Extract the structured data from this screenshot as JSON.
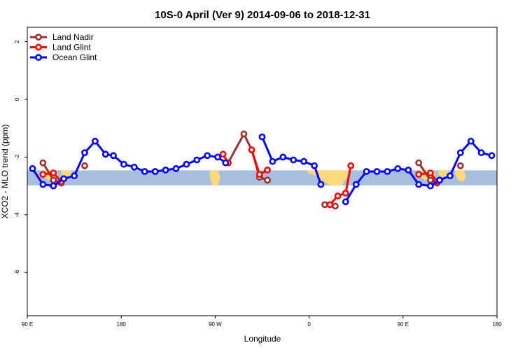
{
  "chart_data": {
    "type": "line",
    "title": "10S-0 April (Ver 9)   2014-09-06 to 2018-12-31",
    "xlabel": "Longitude",
    "ylabel": "XCO2 - MLO trend (ppm)",
    "xlim": [
      90,
      450
    ],
    "ylim": [
      -7.5,
      2.5
    ],
    "x_ticks": [
      {
        "value": 90,
        "label": "90 E"
      },
      {
        "value": 162,
        "label": "180"
      },
      {
        "value": 234,
        "label": "90 W"
      },
      {
        "value": 306,
        "label": "0"
      },
      {
        "value": 378,
        "label": "90 E"
      },
      {
        "value": 450,
        "label": "180"
      }
    ],
    "y_ticks": [
      {
        "value": 2,
        "label": "2"
      },
      {
        "value": 0,
        "label": "0"
      },
      {
        "value": -2,
        "label": "-2"
      },
      {
        "value": -4,
        "label": "-4"
      },
      {
        "value": -6,
        "label": "-6"
      }
    ],
    "legend_position": "top-left",
    "band": {
      "ymin": -2.98,
      "ymax": -2.46,
      "color": "#a8bedc",
      "land_color": "#fcd97a"
    },
    "series": [
      {
        "name": "Land Nadir",
        "color": "#993333",
        "segments": [
          [
            [
              102,
              -2.2
            ],
            [
              110,
              -2.8
            ],
            [
              116,
              -2.9
            ]
          ],
          [
            [
              134,
              -2.3
            ]
          ],
          [
            [
              244,
              -2.2
            ],
            [
              256,
              -1.2
            ],
            [
              262,
              -1.75
            ],
            [
              268,
              -2.7
            ],
            [
              274,
              -2.8
            ]
          ],
          [
            [
              318,
              -3.65
            ],
            [
              326,
              -3.7
            ]
          ],
          [
            [
              390,
              -2.2
            ],
            [
              399,
              -2.8
            ],
            [
              404,
              -2.9
            ]
          ],
          [
            [
              422,
              -2.3
            ]
          ]
        ]
      },
      {
        "name": "Land Glint",
        "color": "#ff0000",
        "segments": [
          [
            [
              102,
              -2.6
            ],
            [
              110,
              -2.55
            ],
            [
              116,
              -2.85
            ]
          ],
          [
            [
              240,
              -1.9
            ],
            [
              244,
              -2.2
            ]
          ],
          [
            [
              262,
              -1.75
            ],
            [
              268,
              -2.6
            ],
            [
              274,
              -2.45
            ]
          ],
          [
            [
              322,
              -3.65
            ],
            [
              328,
              -3.35
            ],
            [
              334,
              -3.25
            ],
            [
              338,
              -2.3
            ]
          ],
          [
            [
              390,
              -2.6
            ],
            [
              399,
              -2.55
            ],
            [
              404,
              -2.85
            ]
          ]
        ]
      },
      {
        "name": "Ocean Glint",
        "color": "#0000ff",
        "segments": [
          [
            [
              94,
              -2.4
            ],
            [
              102,
              -2.95
            ],
            [
              110,
              -3.0
            ],
            [
              118,
              -2.75
            ],
            [
              126,
              -2.65
            ],
            [
              134,
              -1.85
            ],
            [
              142,
              -1.45
            ],
            [
              150,
              -1.9
            ],
            [
              156,
              -1.95
            ],
            [
              164,
              -2.25
            ],
            [
              172,
              -2.35
            ],
            [
              180,
              -2.5
            ],
            [
              188,
              -2.5
            ],
            [
              196,
              -2.45
            ],
            [
              204,
              -2.4
            ],
            [
              212,
              -2.25
            ],
            [
              220,
              -2.1
            ],
            [
              228,
              -1.95
            ],
            [
              236,
              -2.0
            ],
            [
              242,
              -2.2
            ]
          ],
          [
            [
              270,
              -1.3
            ],
            [
              278,
              -2.15
            ],
            [
              286,
              -2.0
            ],
            [
              294,
              -2.1
            ],
            [
              302,
              -2.15
            ],
            [
              310,
              -2.3
            ],
            [
              315,
              -2.95
            ]
          ],
          [
            [
              334,
              -3.55
            ],
            [
              342,
              -2.95
            ],
            [
              350,
              -2.5
            ],
            [
              358,
              -2.5
            ],
            [
              366,
              -2.5
            ],
            [
              374,
              -2.4
            ],
            [
              382,
              -2.45
            ],
            [
              390,
              -2.95
            ],
            [
              399,
              -3.0
            ],
            [
              406,
              -2.8
            ],
            [
              414,
              -2.65
            ],
            [
              422,
              -1.85
            ],
            [
              430,
              -1.45
            ],
            [
              438,
              -1.85
            ],
            [
              446,
              -1.95
            ]
          ]
        ]
      }
    ]
  }
}
